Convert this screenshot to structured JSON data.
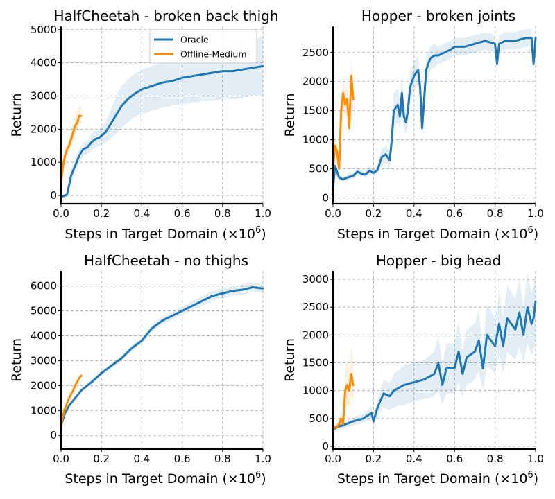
{
  "colors": {
    "oracle": "#1f77b4",
    "offline_medium": "#ff8c00"
  },
  "chart_data": [
    {
      "type": "line",
      "title": "HalfCheetah - broken back thigh",
      "xlabel": "Steps in Target Domain (×10",
      "xlabel_exp": "6",
      "xlabel_close": ")",
      "ylabel": "Return",
      "xlim": [
        0,
        1.0
      ],
      "ylim": [
        -250,
        5100
      ],
      "xticks": [
        0.0,
        0.2,
        0.4,
        0.6,
        0.8,
        1.0
      ],
      "xtick_labels": [
        "0.0",
        "0.2",
        "0.4",
        "0.6",
        "0.8",
        "1.0"
      ],
      "yticks": [
        0,
        1000,
        2000,
        3000,
        4000,
        5000
      ],
      "ytick_labels": [
        "0",
        "1000",
        "2000",
        "3000",
        "4000",
        "5000"
      ],
      "grid": true,
      "legend": {
        "placement": "top-right",
        "entries": [
          {
            "series": "oracle",
            "label": "Oracle"
          },
          {
            "series": "offline_medium",
            "label": "Offline-Medium"
          }
        ]
      },
      "series": [
        {
          "key": "oracle",
          "name": "Oracle",
          "x": [
            0,
            0.02,
            0.03,
            0.05,
            0.07,
            0.09,
            0.11,
            0.13,
            0.15,
            0.17,
            0.19,
            0.22,
            0.25,
            0.28,
            0.3,
            0.33,
            0.36,
            0.4,
            0.45,
            0.5,
            0.55,
            0.6,
            0.65,
            0.7,
            0.75,
            0.8,
            0.85,
            0.9,
            0.95,
            1.0
          ],
          "y": [
            -50,
            0,
            30,
            600,
            900,
            1200,
            1400,
            1450,
            1600,
            1700,
            1750,
            1900,
            2200,
            2500,
            2700,
            2900,
            3050,
            3200,
            3300,
            3400,
            3450,
            3550,
            3600,
            3650,
            3700,
            3750,
            3750,
            3800,
            3850,
            3900
          ],
          "lower": [
            -80,
            -50,
            -30,
            400,
            700,
            1000,
            1200,
            1250,
            1350,
            1450,
            1500,
            1600,
            1750,
            1900,
            2050,
            2200,
            2350,
            2450,
            2550,
            2650,
            2700,
            2750,
            2800,
            2850,
            2850,
            2900,
            2900,
            2950,
            3000,
            3000
          ],
          "upper": [
            -20,
            50,
            100,
            800,
            1100,
            1400,
            1600,
            1650,
            1850,
            1950,
            2000,
            2200,
            2650,
            3100,
            3300,
            3500,
            3650,
            3800,
            3900,
            4000,
            4100,
            4150,
            4200,
            4300,
            4400,
            4500,
            4550,
            4650,
            4700,
            4800
          ]
        },
        {
          "key": "offline_medium",
          "name": "Offline-Medium",
          "x": [
            0,
            0.01,
            0.02,
            0.03,
            0.04,
            0.05,
            0.06,
            0.07,
            0.08,
            0.09,
            0.1
          ],
          "y": [
            400,
            900,
            1200,
            1400,
            1500,
            1700,
            1900,
            2100,
            2200,
            2400,
            2400
          ],
          "lower": [
            300,
            750,
            1000,
            1200,
            1300,
            1500,
            1700,
            1850,
            1950,
            2150,
            2200
          ],
          "upper": [
            500,
            1050,
            1400,
            1600,
            1700,
            1900,
            2150,
            2400,
            2600,
            2700,
            2700
          ]
        }
      ]
    },
    {
      "type": "line",
      "title": "Hopper - broken joints",
      "xlabel": "Steps in Target Domain (×10",
      "xlabel_exp": "6",
      "xlabel_close": ")",
      "ylabel": "Return",
      "xlim": [
        0,
        1.0
      ],
      "ylim": [
        -100,
        2950
      ],
      "xticks": [
        0.0,
        0.2,
        0.4,
        0.6,
        0.8,
        1.0
      ],
      "xtick_labels": [
        "0.0",
        "0.2",
        "0.4",
        "0.6",
        "0.8",
        "1.0"
      ],
      "yticks": [
        0,
        500,
        1000,
        1500,
        2000,
        2500
      ],
      "ytick_labels": [
        "0",
        "500",
        "1000",
        "1500",
        "2000",
        "2500"
      ],
      "grid": true,
      "series": [
        {
          "key": "oracle",
          "name": "Oracle",
          "x": [
            0,
            0.01,
            0.02,
            0.03,
            0.05,
            0.07,
            0.1,
            0.12,
            0.14,
            0.16,
            0.18,
            0.2,
            0.22,
            0.24,
            0.26,
            0.28,
            0.29,
            0.3,
            0.32,
            0.33,
            0.34,
            0.35,
            0.36,
            0.37,
            0.38,
            0.39,
            0.4,
            0.42,
            0.43,
            0.44,
            0.46,
            0.47,
            0.48,
            0.5,
            0.52,
            0.55,
            0.58,
            0.6,
            0.65,
            0.7,
            0.75,
            0.8,
            0.81,
            0.82,
            0.85,
            0.9,
            0.95,
            0.98,
            0.99,
            1.0
          ],
          "y": [
            150,
            550,
            450,
            350,
            320,
            350,
            380,
            450,
            420,
            400,
            470,
            430,
            480,
            700,
            750,
            650,
            1000,
            1500,
            1600,
            1400,
            1800,
            1400,
            1300,
            1500,
            1900,
            2000,
            2100,
            2200,
            1900,
            1200,
            2200,
            2300,
            2400,
            2450,
            2450,
            2500,
            2550,
            2600,
            2600,
            2650,
            2700,
            2650,
            2300,
            2650,
            2700,
            2700,
            2750,
            2750,
            2300,
            2750
          ],
          "lower": [
            100,
            400,
            350,
            300,
            280,
            300,
            330,
            380,
            370,
            350,
            400,
            380,
            420,
            550,
            600,
            500,
            800,
            1200,
            1300,
            1150,
            1500,
            1200,
            1100,
            1250,
            1600,
            1750,
            1850,
            1950,
            1700,
            1050,
            1950,
            2100,
            2200,
            2250,
            2300,
            2350,
            2400,
            2450,
            2450,
            2500,
            2550,
            2500,
            2200,
            2500,
            2550,
            2550,
            2600,
            2600,
            2200,
            2600
          ],
          "upper": [
            200,
            700,
            550,
            400,
            360,
            400,
            430,
            520,
            470,
            450,
            540,
            480,
            540,
            850,
            900,
            800,
            1200,
            1800,
            1900,
            1650,
            2100,
            1600,
            1500,
            1750,
            2200,
            2250,
            2350,
            2450,
            2100,
            1350,
            2450,
            2500,
            2600,
            2650,
            2600,
            2650,
            2700,
            2750,
            2750,
            2800,
            2850,
            2800,
            2400,
            2800,
            2850,
            2850,
            2900,
            2900,
            2400,
            2900
          ]
        },
        {
          "key": "offline_medium",
          "name": "Offline-Medium",
          "x": [
            0,
            0.01,
            0.02,
            0.03,
            0.04,
            0.05,
            0.06,
            0.07,
            0.08,
            0.09,
            0.1
          ],
          "y": [
            500,
            900,
            800,
            500,
            1500,
            1800,
            1600,
            1700,
            1200,
            2100,
            1700
          ],
          "lower": [
            350,
            700,
            600,
            400,
            1250,
            1550,
            1350,
            1450,
            1000,
            1800,
            1450
          ],
          "upper": [
            650,
            1100,
            1000,
            650,
            1750,
            2050,
            1850,
            1950,
            1450,
            2400,
            1950
          ]
        }
      ]
    },
    {
      "type": "line",
      "title": "HalfCheetah - no thighs",
      "xlabel": "Steps in Target Domain (×10",
      "xlabel_exp": "6",
      "xlabel_close": ")",
      "ylabel": "Return",
      "xlim": [
        0,
        1.0
      ],
      "ylim": [
        -550,
        6600
      ],
      "xticks": [
        0.0,
        0.2,
        0.4,
        0.6,
        0.8,
        1.0
      ],
      "xtick_labels": [
        "0.0",
        "0.2",
        "0.4",
        "0.6",
        "0.8",
        "1.0"
      ],
      "yticks": [
        0,
        1000,
        2000,
        3000,
        4000,
        5000,
        6000
      ],
      "ytick_labels": [
        "0",
        "1000",
        "2000",
        "3000",
        "4000",
        "5000",
        "6000"
      ],
      "grid": true,
      "series": [
        {
          "key": "oracle",
          "name": "Oracle",
          "x": [
            0,
            0.02,
            0.04,
            0.06,
            0.08,
            0.1,
            0.13,
            0.16,
            0.2,
            0.25,
            0.3,
            0.35,
            0.4,
            0.45,
            0.5,
            0.55,
            0.6,
            0.65,
            0.7,
            0.75,
            0.8,
            0.85,
            0.9,
            0.95,
            1.0
          ],
          "y": [
            400,
            900,
            1200,
            1400,
            1600,
            1800,
            2000,
            2200,
            2500,
            2800,
            3100,
            3500,
            3800,
            4300,
            4600,
            4800,
            5000,
            5200,
            5400,
            5600,
            5700,
            5800,
            5850,
            5950,
            5900
          ],
          "lower": [
            350,
            850,
            1150,
            1350,
            1550,
            1750,
            1930,
            2120,
            2420,
            2700,
            3000,
            3380,
            3680,
            4150,
            4450,
            4650,
            4830,
            5020,
            5200,
            5400,
            5500,
            5600,
            5650,
            5750,
            5700
          ],
          "upper": [
            450,
            950,
            1250,
            1450,
            1650,
            1850,
            2070,
            2280,
            2580,
            2900,
            3200,
            3620,
            3920,
            4450,
            4750,
            4950,
            5170,
            5380,
            5600,
            5800,
            5900,
            6000,
            6050,
            6150,
            6100
          ]
        },
        {
          "key": "offline_medium",
          "name": "Offline-Medium",
          "x": [
            0,
            0.01,
            0.02,
            0.03,
            0.04,
            0.05,
            0.06,
            0.07,
            0.08,
            0.09,
            0.1
          ],
          "y": [
            400,
            800,
            1100,
            1300,
            1500,
            1650,
            1800,
            2000,
            2150,
            2300,
            2400
          ],
          "lower": [
            350,
            750,
            1050,
            1250,
            1450,
            1600,
            1750,
            1950,
            2100,
            2250,
            2350
          ],
          "upper": [
            450,
            850,
            1150,
            1350,
            1550,
            1700,
            1850,
            2050,
            2200,
            2350,
            2450
          ]
        }
      ]
    },
    {
      "type": "line",
      "title": "Hopper - big head",
      "xlabel": "Steps in Target Domain (×10",
      "xlabel_exp": "6",
      "xlabel_close": ")",
      "ylabel": "Return",
      "xlim": [
        0,
        1.0
      ],
      "ylim": [
        -50,
        3150
      ],
      "xticks": [
        0.0,
        0.2,
        0.4,
        0.6,
        0.8,
        1.0
      ],
      "xtick_labels": [
        "0.0",
        "0.2",
        "0.4",
        "0.6",
        "0.8",
        "1.0"
      ],
      "yticks": [
        0,
        500,
        1000,
        1500,
        2000,
        2500,
        3000
      ],
      "ytick_labels": [
        "0",
        "500",
        "1000",
        "1500",
        "2000",
        "2500",
        "3000"
      ],
      "grid": true,
      "series": [
        {
          "key": "oracle",
          "name": "Oracle",
          "x": [
            0,
            0.02,
            0.05,
            0.1,
            0.15,
            0.19,
            0.2,
            0.22,
            0.25,
            0.28,
            0.3,
            0.35,
            0.4,
            0.45,
            0.5,
            0.52,
            0.54,
            0.56,
            0.6,
            0.62,
            0.64,
            0.66,
            0.7,
            0.72,
            0.74,
            0.76,
            0.8,
            0.82,
            0.84,
            0.86,
            0.9,
            0.92,
            0.94,
            0.96,
            0.98,
            0.99,
            1.0
          ],
          "y": [
            300,
            350,
            380,
            450,
            500,
            600,
            450,
            700,
            950,
            900,
            1000,
            1100,
            1150,
            1200,
            1300,
            1500,
            1100,
            1400,
            1400,
            1700,
            1300,
            1600,
            1700,
            1900,
            1400,
            2000,
            1800,
            2200,
            1800,
            2300,
            2100,
            2400,
            2000,
            2500,
            2200,
            2300,
            2600
          ],
          "lower": [
            250,
            300,
            320,
            380,
            420,
            480,
            370,
            550,
            700,
            650,
            700,
            750,
            800,
            850,
            900,
            1000,
            750,
            950,
            950,
            1150,
            900,
            1100,
            1200,
            1350,
            1000,
            1450,
            1300,
            1650,
            1300,
            1700,
            1550,
            1800,
            1500,
            1850,
            1650,
            1700,
            1900
          ],
          "upper": [
            350,
            400,
            440,
            520,
            580,
            720,
            530,
            850,
            1200,
            1150,
            1300,
            1450,
            1500,
            1550,
            1700,
            2000,
            1450,
            1850,
            1850,
            2250,
            1700,
            2100,
            2200,
            2450,
            1800,
            2550,
            2300,
            2750,
            2300,
            2900,
            2650,
            3000,
            2500,
            3100,
            2750,
            2900,
            3100
          ]
        },
        {
          "key": "offline_medium",
          "name": "Offline-Medium",
          "x": [
            0,
            0.01,
            0.02,
            0.03,
            0.04,
            0.05,
            0.06,
            0.07,
            0.08,
            0.09,
            0.1
          ],
          "y": [
            300,
            350,
            350,
            400,
            500,
            400,
            1000,
            1100,
            1000,
            1300,
            1100
          ],
          "lower": [
            250,
            280,
            280,
            320,
            380,
            300,
            700,
            750,
            700,
            900,
            800
          ],
          "upper": [
            350,
            420,
            420,
            480,
            620,
            500,
            1400,
            1500,
            1350,
            1800,
            1500
          ]
        }
      ]
    }
  ]
}
